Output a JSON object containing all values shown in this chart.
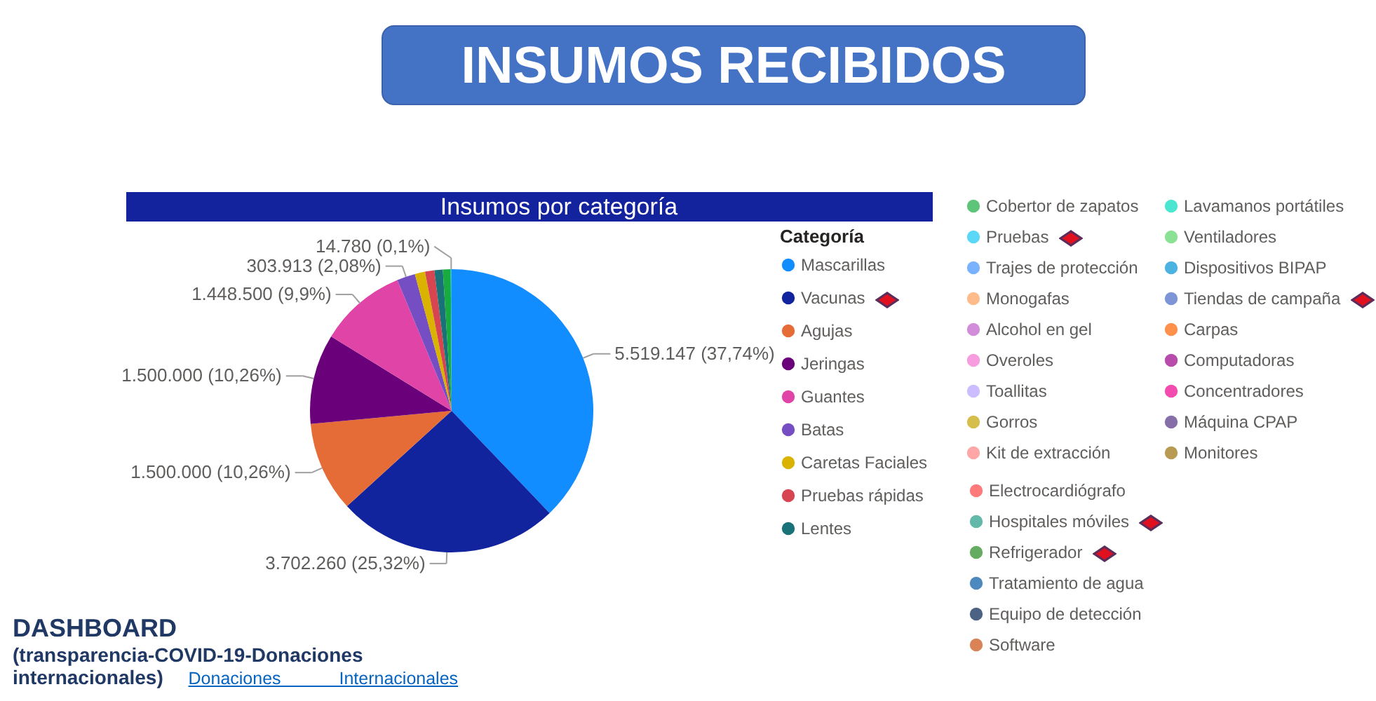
{
  "chart_data": {
    "type": "pie",
    "title": "INSUMOS RECIBIDOS",
    "subtitle": "Insumos por categoría",
    "legend_title": "Categoría",
    "categories": [
      "Mascarillas",
      "Vacunas",
      "Agujas",
      "Jeringas",
      "Guantes",
      "Batas",
      "Caretas Faciales",
      "Pruebas rápidas",
      "Lentes",
      "Cobertor de zapatos",
      "Pruebas",
      "Trajes de protección",
      "Monogafas",
      "Alcohol en gel",
      "Overoles",
      "Toallitas",
      "Gorros",
      "Kit de extracción",
      "Lavamanos portátiles",
      "Ventiladores",
      "Dispositivos BIPAP",
      "Tiendas de campaña",
      "Carpas",
      "Computadoras",
      "Concentradores",
      "Máquina CPAP",
      "Monitores",
      "Electrocardiógrafo",
      "Hospitales móviles",
      "Refrigerador",
      "Tratamiento de agua",
      "Equipo de detección",
      "Software"
    ],
    "values": [
      5519147,
      3702260,
      1500000,
      1500000,
      1448500,
      303913,
      170000,
      155000,
      140000,
      130000,
      14780,
      null,
      null,
      null,
      null,
      null,
      null,
      null,
      null,
      null,
      null,
      null,
      null,
      null,
      null,
      null,
      null,
      null,
      null,
      null,
      null,
      null,
      null
    ],
    "colors": [
      "#118dff",
      "#12239e",
      "#e66c37",
      "#6b007b",
      "#e044a7",
      "#744ec2",
      "#d9b300",
      "#d64550",
      "#197278",
      "#1aab40",
      "#15c6f4",
      "#4092ff",
      "#ffa058",
      "#be5dc9",
      "#f472d0",
      "#b5a1ff",
      "#c4a200",
      "#ff8080",
      "#00dbbc",
      "#5bd667",
      "#0091d5",
      "#4668c5",
      "#ff6300",
      "#99008a",
      "#ec008c",
      "#533285",
      "#99700a",
      "#ff4141",
      "#1f9a85",
      "#25891c",
      "#0057a2",
      "#002050",
      "#c94f0f"
    ],
    "value_labels": [
      "5.519.147 (37,74%)",
      "3.702.260 (25,32%)",
      "1.500.000 (10,26%)",
      "1.500.000 (10,26%)",
      "1.448.500 (9,9%)",
      "303.913 (2,08%)",
      null,
      null,
      null,
      null,
      "14.780 (0,1%)",
      null,
      null,
      null,
      null,
      null,
      null,
      null,
      null,
      null,
      null,
      null,
      null,
      null,
      null,
      null,
      null,
      null,
      null,
      null,
      null,
      null,
      null
    ],
    "legend": "right",
    "annotations": [
      "DASHBOARD",
      "(transparencia-COVID-19-Donaciones internacionales)",
      "Donaciones Internacionales"
    ]
  }
}
